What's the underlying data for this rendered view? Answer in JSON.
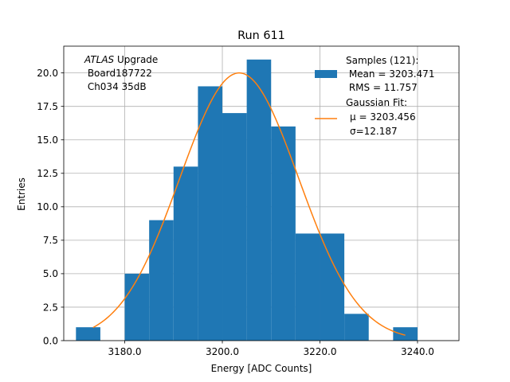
{
  "chart_data": {
    "type": "bar",
    "title": "Run 611",
    "xlabel": "Energy [ADC Counts]",
    "ylabel": "Entries",
    "xlim": [
      3167.5,
      3248.5
    ],
    "ylim": [
      0,
      22
    ],
    "grid": true,
    "xticks": [
      3180,
      3200,
      3220,
      3240
    ],
    "xtick_labels": [
      "3180.0",
      "3200.0",
      "3220.0",
      "3240.0"
    ],
    "yticks": [
      0,
      2.5,
      5,
      7.5,
      10,
      12.5,
      15,
      17.5,
      20
    ],
    "ytick_labels": [
      "0.0",
      "2.5",
      "5.0",
      "7.5",
      "10.0",
      "12.5",
      "15.0",
      "17.5",
      "20.0"
    ],
    "histogram": {
      "bin_edges": [
        3170,
        3175,
        3180,
        3185,
        3190,
        3195,
        3200,
        3205,
        3210,
        3215,
        3220,
        3225,
        3230,
        3235,
        3240
      ],
      "counts": [
        1,
        0,
        5,
        9,
        13,
        19,
        17,
        21,
        16,
        8,
        8,
        2,
        0,
        1
      ],
      "color": "#1f77b4"
    },
    "gaussian_fit": {
      "mean": 3203.456,
      "sigma": 12.187,
      "amplitude": 20.0,
      "x_range": [
        3173.5,
        3237.5
      ],
      "color": "#ff7f0e"
    },
    "annotation": {
      "italic": "ATLAS",
      "line1_rest": " Upgrade",
      "line2": " Board187722",
      "line3": " Ch034 35dB"
    },
    "legend": {
      "placement": "upper right",
      "samples_lines": [
        "Samples (121):",
        " Mean = 3203.471",
        " RMS = 11.757"
      ],
      "fit_lines": [
        "Gaussian Fit:",
        "μ = 3203.456",
        "σ=12.187"
      ]
    }
  }
}
